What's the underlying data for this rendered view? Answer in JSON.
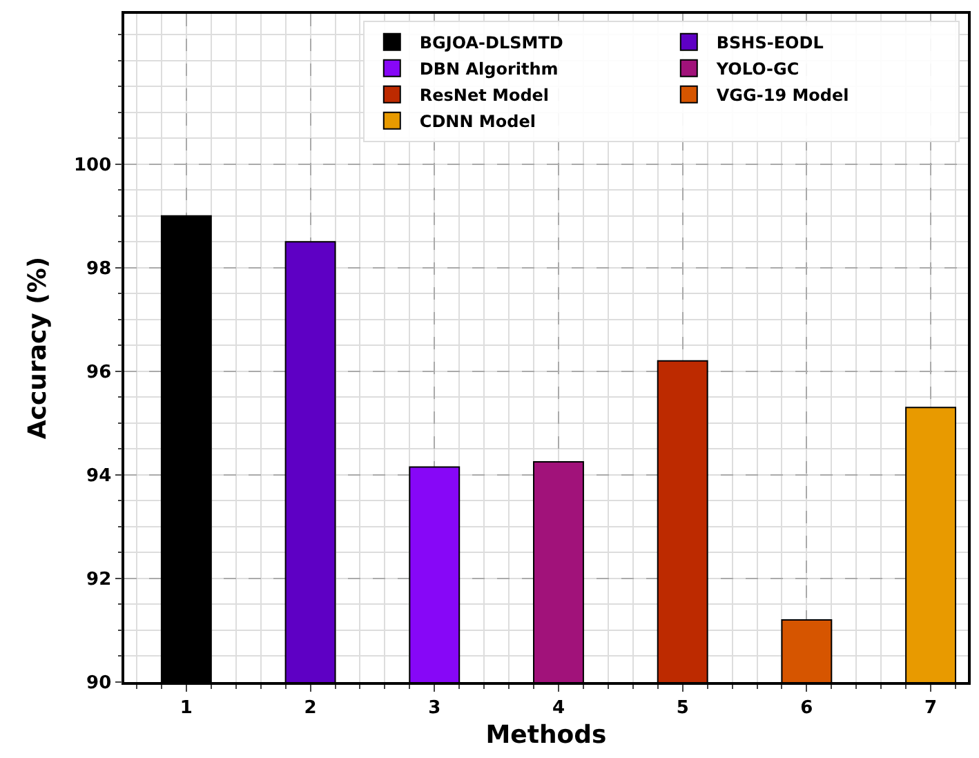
{
  "chart_data": {
    "type": "bar",
    "xlabel": "Methods",
    "ylabel": "Accuracy (%)",
    "x": [
      1,
      2,
      3,
      4,
      5,
      6,
      7
    ],
    "series": [
      {
        "name": "BGJOA-DLSMTD",
        "color": "#000000",
        "values": [
          99.0,
          null,
          null,
          null,
          null,
          null,
          null
        ]
      },
      {
        "name": "BSHS-EODL",
        "color": "#5e00c4",
        "values": [
          null,
          98.5,
          null,
          null,
          null,
          null,
          null
        ]
      },
      {
        "name": "DBN Algorithm",
        "color": "#8707f7",
        "values": [
          null,
          null,
          94.15,
          null,
          null,
          null,
          null
        ]
      },
      {
        "name": "YOLO-GC",
        "color": "#a1127a",
        "values": [
          null,
          null,
          null,
          94.25,
          null,
          null,
          null
        ]
      },
      {
        "name": "ResNet Model",
        "color": "#bd2a00",
        "values": [
          null,
          null,
          null,
          null,
          96.2,
          null,
          null
        ]
      },
      {
        "name": "VGG-19 Model",
        "color": "#d65500",
        "values": [
          null,
          null,
          null,
          null,
          null,
          91.2,
          null
        ]
      },
      {
        "name": "CDNN Model",
        "color": "#e89a00",
        "values": [
          null,
          null,
          null,
          null,
          null,
          null,
          95.3
        ]
      }
    ],
    "xlim": [
      0.5,
      7.3
    ],
    "xticks": [
      1,
      2,
      3,
      4,
      5,
      6,
      7
    ],
    "ylim": [
      90,
      102.9
    ],
    "yticks": [
      90,
      92,
      94,
      96,
      98,
      100
    ],
    "grid": true,
    "legend": "top right"
  }
}
